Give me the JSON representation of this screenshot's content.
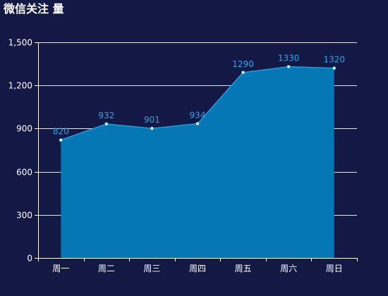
{
  "title": "微信关注 量",
  "colors": {
    "background": "#131845",
    "area_fill": "#0577b4",
    "line": "#1e9fdf",
    "point": "#ffffff",
    "label": "#2fa4e7",
    "grid": "#ffffff",
    "axis": "#ffffff",
    "tick_text": "#ffffff"
  },
  "chart_data": {
    "type": "area",
    "categories": [
      "周一",
      "周二",
      "周三",
      "周四",
      "周五",
      "周六",
      "周日"
    ],
    "values": [
      820,
      932,
      901,
      934,
      1290,
      1330,
      1320
    ],
    "value_labels": [
      "820",
      "932",
      "901",
      "934",
      "1290",
      "1330",
      "1320"
    ],
    "y_tick_labels": [
      "0",
      "300",
      "600",
      "900",
      "1,200",
      "1,500"
    ],
    "y_ticks": [
      0,
      300,
      600,
      900,
      1200,
      1500
    ],
    "ylim": [
      0,
      1500
    ],
    "grid": true,
    "legend": "none"
  }
}
